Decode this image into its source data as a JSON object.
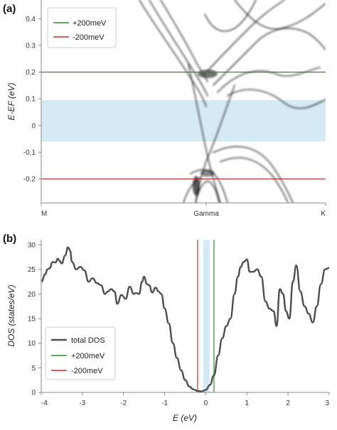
{
  "chart_data": [
    {
      "panel_label": "(a)",
      "type": "line",
      "title": "",
      "xlabel": "",
      "ylabel": "E-EF (eV)",
      "x_ticks": [
        "M",
        "Gamma",
        "K"
      ],
      "y_ticks": [
        "0.4",
        "0.3",
        "0.2",
        "0.1",
        "0",
        "-0.1",
        "-0.2"
      ],
      "ylim": [
        -0.29,
        0.47
      ],
      "shaded_band": {
        "from": -0.06,
        "to": 0.095,
        "color": "#cfe6f2"
      },
      "series": [
        {
          "name": "+200meV",
          "kind": "hline",
          "y": 0.2,
          "color": "#2e8b2e"
        },
        {
          "name": "-200meV",
          "kind": "hline",
          "y": -0.2,
          "color": "#d62728"
        }
      ],
      "legend_position": "top-left"
    },
    {
      "panel_label": "(b)",
      "type": "line",
      "title": "",
      "xlabel": "E (eV)",
      "ylabel": "DOS (states/eV)",
      "x_ticks": [
        "-4",
        "-3",
        "-2",
        "-1",
        "0",
        "1",
        "2",
        "3"
      ],
      "y_ticks": [
        "30",
        "25",
        "20",
        "15",
        "10",
        "5",
        "0"
      ],
      "xlim": [
        -4,
        3
      ],
      "ylim": [
        0,
        31
      ],
      "shaded_band": {
        "from": -0.06,
        "to": 0.095,
        "color": "#cfe6f2"
      },
      "series": [
        {
          "name": "total DOS",
          "color": "#4d4d4d",
          "x": [
            -4.0,
            -3.9,
            -3.85,
            -3.8,
            -3.72,
            -3.65,
            -3.6,
            -3.55,
            -3.5,
            -3.42,
            -3.35,
            -3.3,
            -3.25,
            -3.15,
            -3.05,
            -2.95,
            -2.85,
            -2.75,
            -2.65,
            -2.55,
            -2.45,
            -2.38,
            -2.3,
            -2.22,
            -2.15,
            -2.05,
            -1.95,
            -1.85,
            -1.75,
            -1.7,
            -1.62,
            -1.55,
            -1.5,
            -1.43,
            -1.38,
            -1.3,
            -1.22,
            -1.15,
            -1.08,
            -1.0,
            -0.9,
            -0.8,
            -0.7,
            -0.6,
            -0.5,
            -0.4,
            -0.3,
            -0.2,
            -0.1,
            0.0,
            0.1,
            0.2,
            0.3,
            0.4,
            0.5,
            0.6,
            0.7,
            0.78,
            0.85,
            0.92,
            1.0,
            1.07,
            1.15,
            1.25,
            1.35,
            1.45,
            1.55,
            1.65,
            1.72,
            1.8,
            1.88,
            1.95,
            2.03,
            2.12,
            2.2,
            2.3,
            2.4,
            2.5,
            2.6,
            2.7,
            2.8,
            2.9,
            3.0
          ],
          "y": [
            22.5,
            24.0,
            25.0,
            25.2,
            26.5,
            26.4,
            27.2,
            26.7,
            26.2,
            27.8,
            29.5,
            28.8,
            26.5,
            25.0,
            25.5,
            24.8,
            22.5,
            23.2,
            22.2,
            21.8,
            20.0,
            20.5,
            21.0,
            20.5,
            18.0,
            19.8,
            19.0,
            21.5,
            20.0,
            20.2,
            20.0,
            22.5,
            23.5,
            22.0,
            21.8,
            20.3,
            21.3,
            20.5,
            20.0,
            17.0,
            14.0,
            10.0,
            7.0,
            4.5,
            2.5,
            1.2,
            0.6,
            0.3,
            0.2,
            0.5,
            1.5,
            3.5,
            7.5,
            11.0,
            13.5,
            15.0,
            20.0,
            23.5,
            25.5,
            26.5,
            27.0,
            24.5,
            24.5,
            25.0,
            23.5,
            18.5,
            17.0,
            16.5,
            13.5,
            21.0,
            20.0,
            16.5,
            15.0,
            22.5,
            25.8,
            20.5,
            17.5,
            16.0,
            14.2,
            17.5,
            22.0,
            25.0,
            25.3
          ]
        },
        {
          "name": "+200meV",
          "kind": "vline",
          "x": 0.2,
          "color": "#2e8b2e"
        },
        {
          "name": "-200meV",
          "kind": "vline",
          "x": -0.2,
          "color": "#d62728"
        }
      ],
      "legend_position": "bottom-left"
    }
  ]
}
